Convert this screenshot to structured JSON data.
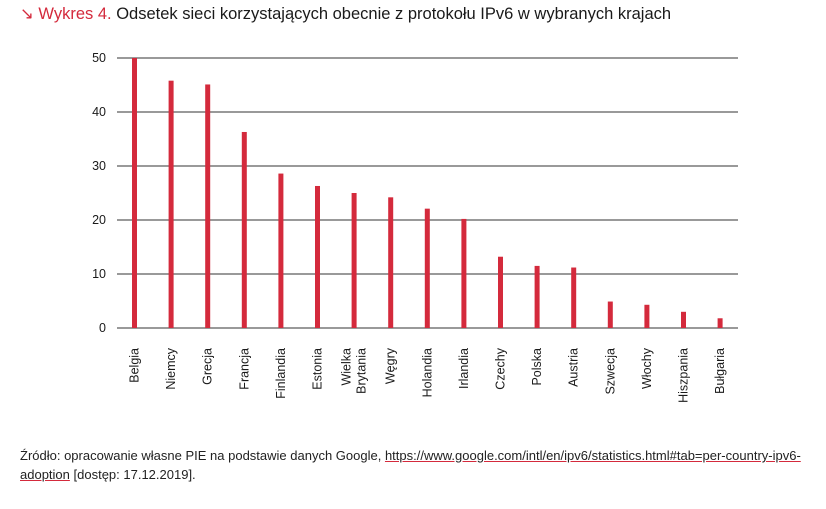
{
  "title": {
    "arrow": "↘",
    "figure_label": "Wykres 4.",
    "text": "Odsetek sieci korzystających obecnie z protokołu IPv6 w wybranych krajach"
  },
  "source": {
    "prefix": "Źródło: opracowanie własne PIE na podstawie danych Google,",
    "link": "https://www.google.com/intl/en/ipv6/statistics.html#tab=per-country-ipv6-adoption",
    "suffix": "[dostęp: 17.12.2019]."
  },
  "colors": {
    "bar": "#d42a3c",
    "grid": "#333333",
    "accent": "#d42a3c"
  },
  "chart_data": {
    "type": "bar",
    "categories": [
      "Belgia",
      "Niemcy",
      "Grecja",
      "Francja",
      "Finlandia",
      "Estonia",
      "Wielka Brytania",
      "Węgry",
      "Holandia",
      "Irlandia",
      "Czechy",
      "Polska",
      "Austria",
      "Szwecja",
      "Włochy",
      "Hiszpania",
      "Bułgaria"
    ],
    "category_lines": [
      [
        "Belgia"
      ],
      [
        "Niemcy"
      ],
      [
        "Grecja"
      ],
      [
        "Francja"
      ],
      [
        "Finlandia"
      ],
      [
        "Estonia"
      ],
      [
        "Wielka",
        "Brytania"
      ],
      [
        "Węgry"
      ],
      [
        "Holandia"
      ],
      [
        "Irlandia"
      ],
      [
        "Czechy"
      ],
      [
        "Polska"
      ],
      [
        "Austria"
      ],
      [
        "Szwecja"
      ],
      [
        "Włochy"
      ],
      [
        "Hiszpania"
      ],
      [
        "Bułgaria"
      ]
    ],
    "values": [
      50.0,
      45.8,
      45.1,
      36.3,
      28.6,
      26.3,
      25.0,
      24.2,
      22.1,
      20.2,
      13.2,
      11.5,
      11.2,
      4.9,
      4.3,
      3.0,
      1.8
    ],
    "title": "Odsetek sieci korzystających obecnie z protokołu IPv6 w wybranych krajach",
    "xlabel": "",
    "ylabel": "",
    "ylim": [
      0,
      50
    ],
    "yticks": [
      0,
      10,
      20,
      30,
      40,
      50
    ],
    "grid": true,
    "legend": "none"
  }
}
